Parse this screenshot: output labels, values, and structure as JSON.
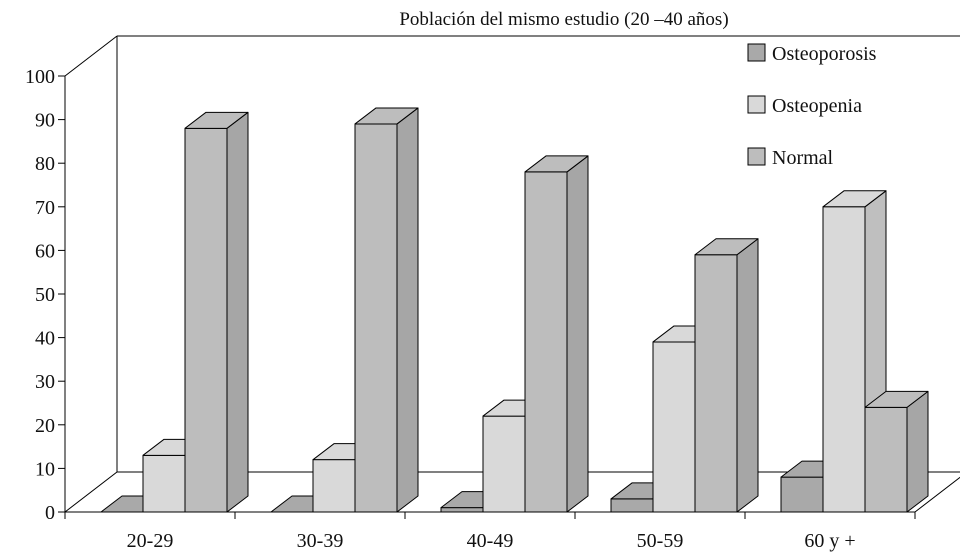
{
  "chart_data": {
    "type": "bar",
    "title": "Población del mismo estudio (20 –40 años)",
    "xlabel": "",
    "ylabel": "",
    "ylim": [
      0,
      100
    ],
    "yticks": [
      "0",
      "10",
      "20",
      "30",
      "40",
      "50",
      "60",
      "70",
      "80",
      "90",
      "100"
    ],
    "categories": [
      "20-29",
      "30-39",
      "40-49",
      "50-59",
      "60 y +"
    ],
    "series": [
      {
        "name": "Osteoporosis",
        "values": [
          0,
          0,
          1,
          3,
          8
        ],
        "color": "#a9a9a9"
      },
      {
        "name": "Osteopenia",
        "values": [
          13,
          12,
          22,
          39,
          70
        ],
        "color": "#d9d9d9"
      },
      {
        "name": "Normal",
        "values": [
          88,
          89,
          78,
          59,
          24
        ],
        "color": "#bdbdbd"
      }
    ],
    "grid": false,
    "legend_position": "top-right",
    "style": "3d-column"
  }
}
